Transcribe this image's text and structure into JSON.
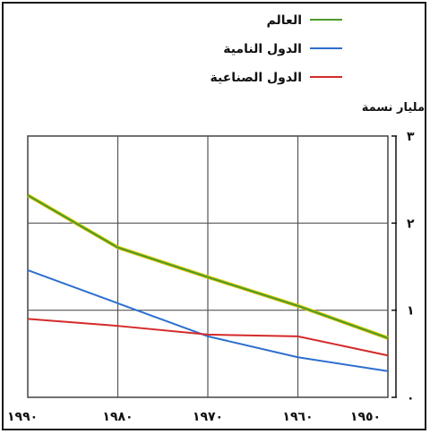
{
  "chart_data": {
    "type": "line",
    "title": "",
    "xlabel": "",
    "ylabel": "مليار نسمة",
    "x": [
      "١٩٥٠",
      "١٩٦٠",
      "١٩٧٠",
      "١٩٨٠",
      "١٩٩٠"
    ],
    "x_values": [
      1950,
      1960,
      1970,
      1980,
      1990
    ],
    "yticks": [
      "٠",
      "١",
      "٢",
      "٣"
    ],
    "ytick_values": [
      0,
      1,
      2,
      3
    ],
    "ylim": [
      0,
      3
    ],
    "xlim": [
      1950,
      1990
    ],
    "x_reversed": true,
    "grid": true,
    "legend_position": "top-right",
    "series": [
      {
        "name": "العالم",
        "color": "#4a9a2a",
        "values": [
          0.68,
          1.05,
          1.38,
          1.72,
          2.32
        ]
      },
      {
        "name": "الدول النامية",
        "color": "#2e6fcf",
        "values": [
          0.3,
          0.46,
          0.7,
          1.08,
          1.46
        ]
      },
      {
        "name": "الدول الصناعية",
        "color": "#d42a2a",
        "values": [
          0.48,
          0.7,
          0.72,
          0.82,
          0.9
        ]
      }
    ]
  }
}
